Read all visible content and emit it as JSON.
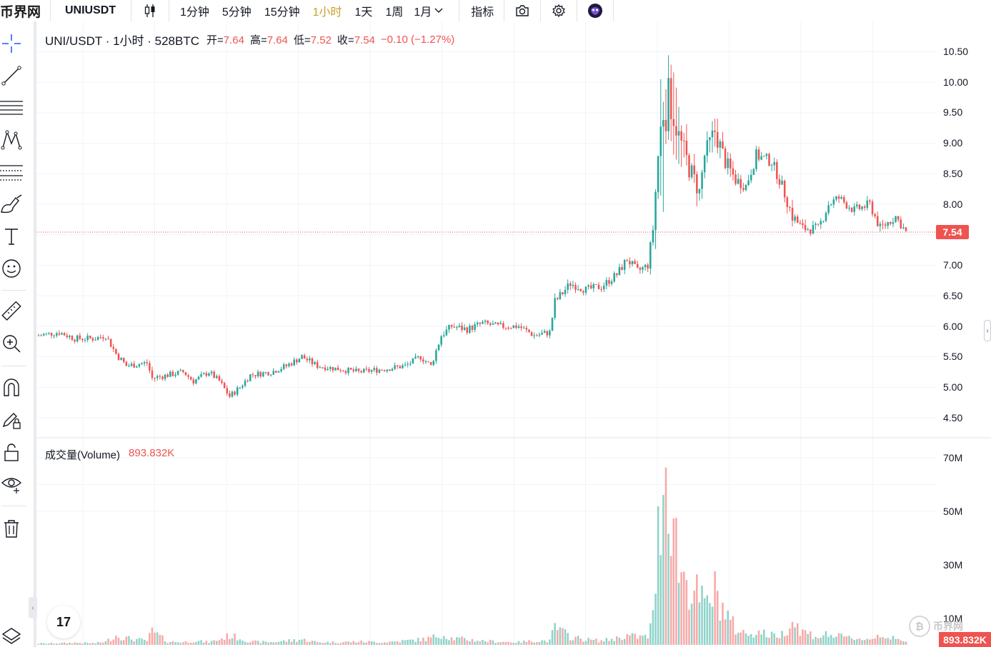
{
  "header": {
    "site_logo": "币界网",
    "symbol": "UNIUSDT",
    "intervals": [
      "1分钟",
      "5分钟",
      "15分钟",
      "1小时",
      "1天",
      "1周"
    ],
    "active_interval": "1小时",
    "more_interval": "1月",
    "indicators_label": "指标"
  },
  "legend": {
    "title": "UNI/USDT · 1小时 · 528BTC",
    "open_label": "开=",
    "open": "7.64",
    "high_label": "高=",
    "high": "7.64",
    "low_label": "低=",
    "low": "7.52",
    "close_label": "收=",
    "close": "7.54",
    "change": "−0.10 (−1.27%)"
  },
  "volume_legend": {
    "label": "成交量(Volume)",
    "value": "893.832K"
  },
  "price_axis": [
    "10.50",
    "10.00",
    "9.50",
    "9.00",
    "8.50",
    "8.00",
    "7.50",
    "7.00",
    "6.50",
    "6.00",
    "5.50",
    "5.00",
    "4.50"
  ],
  "volume_axis": [
    "70M",
    "50M",
    "30M",
    "10M"
  ],
  "last_price_tag": "7.54",
  "last_volume_tag": "893.832K",
  "tv_logo": "17",
  "watermark": "币界网",
  "colors": {
    "up": "#26a69a",
    "down": "#ef5350",
    "up_vol": "#8fd3c9",
    "down_vol": "#f7a9a7",
    "active": "#c8a02a"
  },
  "chart_data": {
    "type": "candlestick",
    "ylim": [
      4.3,
      10.7
    ],
    "volume_ylim": [
      0,
      72
    ],
    "anchors": [
      [
        0,
        5.85,
        0.5
      ],
      [
        8,
        5.9,
        0.6
      ],
      [
        14,
        5.8,
        0.8
      ],
      [
        22,
        5.8,
        0.6
      ],
      [
        26,
        5.85,
        1.2
      ],
      [
        30,
        5.55,
        3.5
      ],
      [
        34,
        5.35,
        2.5
      ],
      [
        42,
        5.4,
        1.5
      ],
      [
        44,
        5.15,
        5.0
      ],
      [
        50,
        5.2,
        1.2
      ],
      [
        56,
        5.25,
        1.0
      ],
      [
        60,
        5.1,
        1.5
      ],
      [
        66,
        5.25,
        1.0
      ],
      [
        70,
        5.1,
        2.0
      ],
      [
        74,
        4.85,
        3.5
      ],
      [
        78,
        5.0,
        2.5
      ],
      [
        82,
        5.2,
        1.2
      ],
      [
        90,
        5.25,
        1.0
      ],
      [
        96,
        5.35,
        1.5
      ],
      [
        102,
        5.5,
        2.0
      ],
      [
        108,
        5.35,
        1.0
      ],
      [
        116,
        5.3,
        1.0
      ],
      [
        124,
        5.25,
        1.2
      ],
      [
        134,
        5.3,
        1.0
      ],
      [
        142,
        5.35,
        1.5
      ],
      [
        148,
        5.5,
        2.0
      ],
      [
        152,
        5.35,
        2.5
      ],
      [
        156,
        5.85,
        4.0
      ],
      [
        160,
        6.0,
        2.5
      ],
      [
        166,
        5.95,
        2.0
      ],
      [
        172,
        6.05,
        1.5
      ],
      [
        178,
        6.0,
        1.2
      ],
      [
        186,
        6.0,
        1.0
      ],
      [
        192,
        5.85,
        1.5
      ],
      [
        198,
        5.9,
        1.5
      ],
      [
        200,
        6.4,
        6.5
      ],
      [
        206,
        6.7,
        3.0
      ],
      [
        212,
        6.6,
        2.0
      ],
      [
        218,
        6.65,
        1.5
      ],
      [
        224,
        6.85,
        2.5
      ],
      [
        228,
        7.1,
        3.5
      ],
      [
        232,
        6.9,
        3.0
      ],
      [
        236,
        7.0,
        3.0
      ],
      [
        238,
        7.6,
        10.0
      ],
      [
        240,
        8.8,
        40.0
      ],
      [
        242,
        9.6,
        70.0
      ],
      [
        245,
        9.7,
        55.0
      ],
      [
        248,
        9.1,
        30.0
      ],
      [
        252,
        8.6,
        22.0
      ],
      [
        256,
        8.2,
        18.0
      ],
      [
        258,
        8.8,
        14.0
      ],
      [
        262,
        9.2,
        20.0
      ],
      [
        266,
        8.7,
        12.0
      ],
      [
        270,
        8.4,
        6.0
      ],
      [
        274,
        8.3,
        4.0
      ],
      [
        278,
        8.8,
        5.0
      ],
      [
        284,
        8.7,
        3.5
      ],
      [
        288,
        8.3,
        4.0
      ],
      [
        292,
        7.8,
        9.0
      ],
      [
        296,
        7.6,
        5.0
      ],
      [
        302,
        7.6,
        3.0
      ],
      [
        306,
        8.0,
        4.0
      ],
      [
        310,
        8.1,
        3.0
      ],
      [
        316,
        7.9,
        2.5
      ],
      [
        322,
        8.0,
        2.0
      ],
      [
        326,
        7.6,
        4.0
      ],
      [
        332,
        7.8,
        2.0
      ],
      [
        336,
        7.54,
        1.0
      ]
    ]
  }
}
